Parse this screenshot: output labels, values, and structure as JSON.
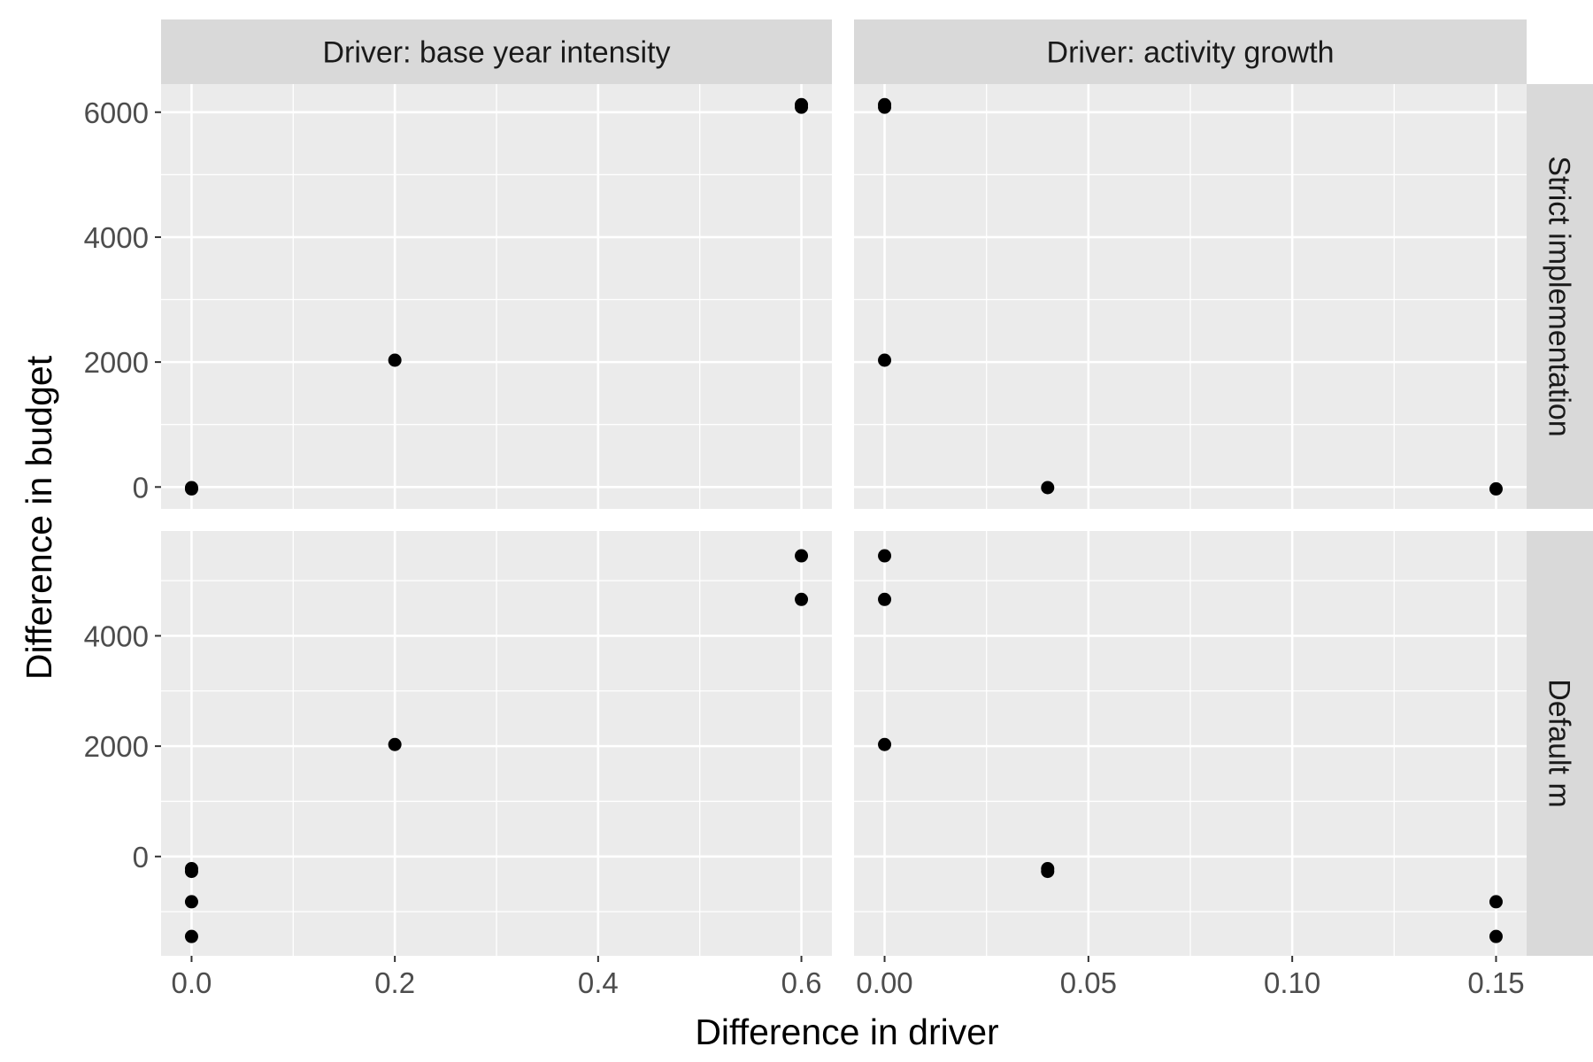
{
  "chart_data": {
    "type": "scatter",
    "title": "",
    "xlabel": "Difference in driver",
    "ylabel": "Difference in budget",
    "facets": {
      "columns": [
        {
          "label": "Driver: base year intensity",
          "xlim": [
            -0.03,
            0.63
          ],
          "ticks": [
            0.0,
            0.2,
            0.4,
            0.6
          ],
          "tick_labels": [
            "0.0",
            "0.2",
            "0.4",
            "0.6"
          ],
          "minor_ticks": [
            0.1,
            0.3,
            0.5
          ]
        },
        {
          "label": "Driver: activity growth",
          "xlim": [
            -0.0075,
            0.1575
          ],
          "ticks": [
            0.0,
            0.05,
            0.1,
            0.15
          ],
          "tick_labels": [
            "0.00",
            "0.05",
            "0.10",
            "0.15"
          ],
          "minor_ticks": [
            0.025,
            0.075,
            0.125
          ]
        }
      ],
      "rows": [
        {
          "label": "Strict implementation",
          "ylim": [
            -350,
            6450
          ],
          "ticks": [
            0,
            2000,
            4000,
            6000
          ],
          "tick_labels": [
            "0",
            "2000",
            "4000",
            "6000"
          ],
          "minor_ticks": [
            1000,
            3000,
            5000
          ]
        },
        {
          "label": "Default m",
          "ylim": [
            -1800,
            5900
          ],
          "ticks": [
            0,
            2000,
            4000
          ],
          "tick_labels": [
            "0",
            "2000",
            "4000"
          ],
          "minor_ticks": [
            -1000,
            1000,
            3000,
            5000
          ]
        }
      ]
    },
    "panels": [
      {
        "row": 0,
        "col": 0,
        "points": [
          [
            0.0,
            -10
          ],
          [
            0.0,
            -30
          ],
          [
            0.2,
            2030
          ],
          [
            0.6,
            6080
          ],
          [
            0.6,
            6120
          ]
        ]
      },
      {
        "row": 0,
        "col": 1,
        "points": [
          [
            0.0,
            6080
          ],
          [
            0.0,
            6120
          ],
          [
            0.0,
            2030
          ],
          [
            0.04,
            -10
          ],
          [
            0.15,
            -30
          ]
        ]
      },
      {
        "row": 1,
        "col": 0,
        "points": [
          [
            0.0,
            -220
          ],
          [
            0.0,
            -270
          ],
          [
            0.0,
            -820
          ],
          [
            0.0,
            -1450
          ],
          [
            0.2,
            2030
          ],
          [
            0.6,
            5450
          ],
          [
            0.6,
            4660
          ]
        ]
      },
      {
        "row": 1,
        "col": 1,
        "points": [
          [
            0.0,
            5450
          ],
          [
            0.0,
            4660
          ],
          [
            0.0,
            2030
          ],
          [
            0.04,
            -220
          ],
          [
            0.04,
            -270
          ],
          [
            0.15,
            -820
          ],
          [
            0.15,
            -1450
          ]
        ]
      }
    ],
    "grid": true,
    "legend": "none",
    "colors": {
      "panel_background": "#ebebeb",
      "strip_background": "#d9d9d9",
      "grid": "#ffffff",
      "point": "#000000",
      "axis_text": "#4d4d4d",
      "title_text": "#000000",
      "strip_text": "#1a1a1a"
    }
  }
}
